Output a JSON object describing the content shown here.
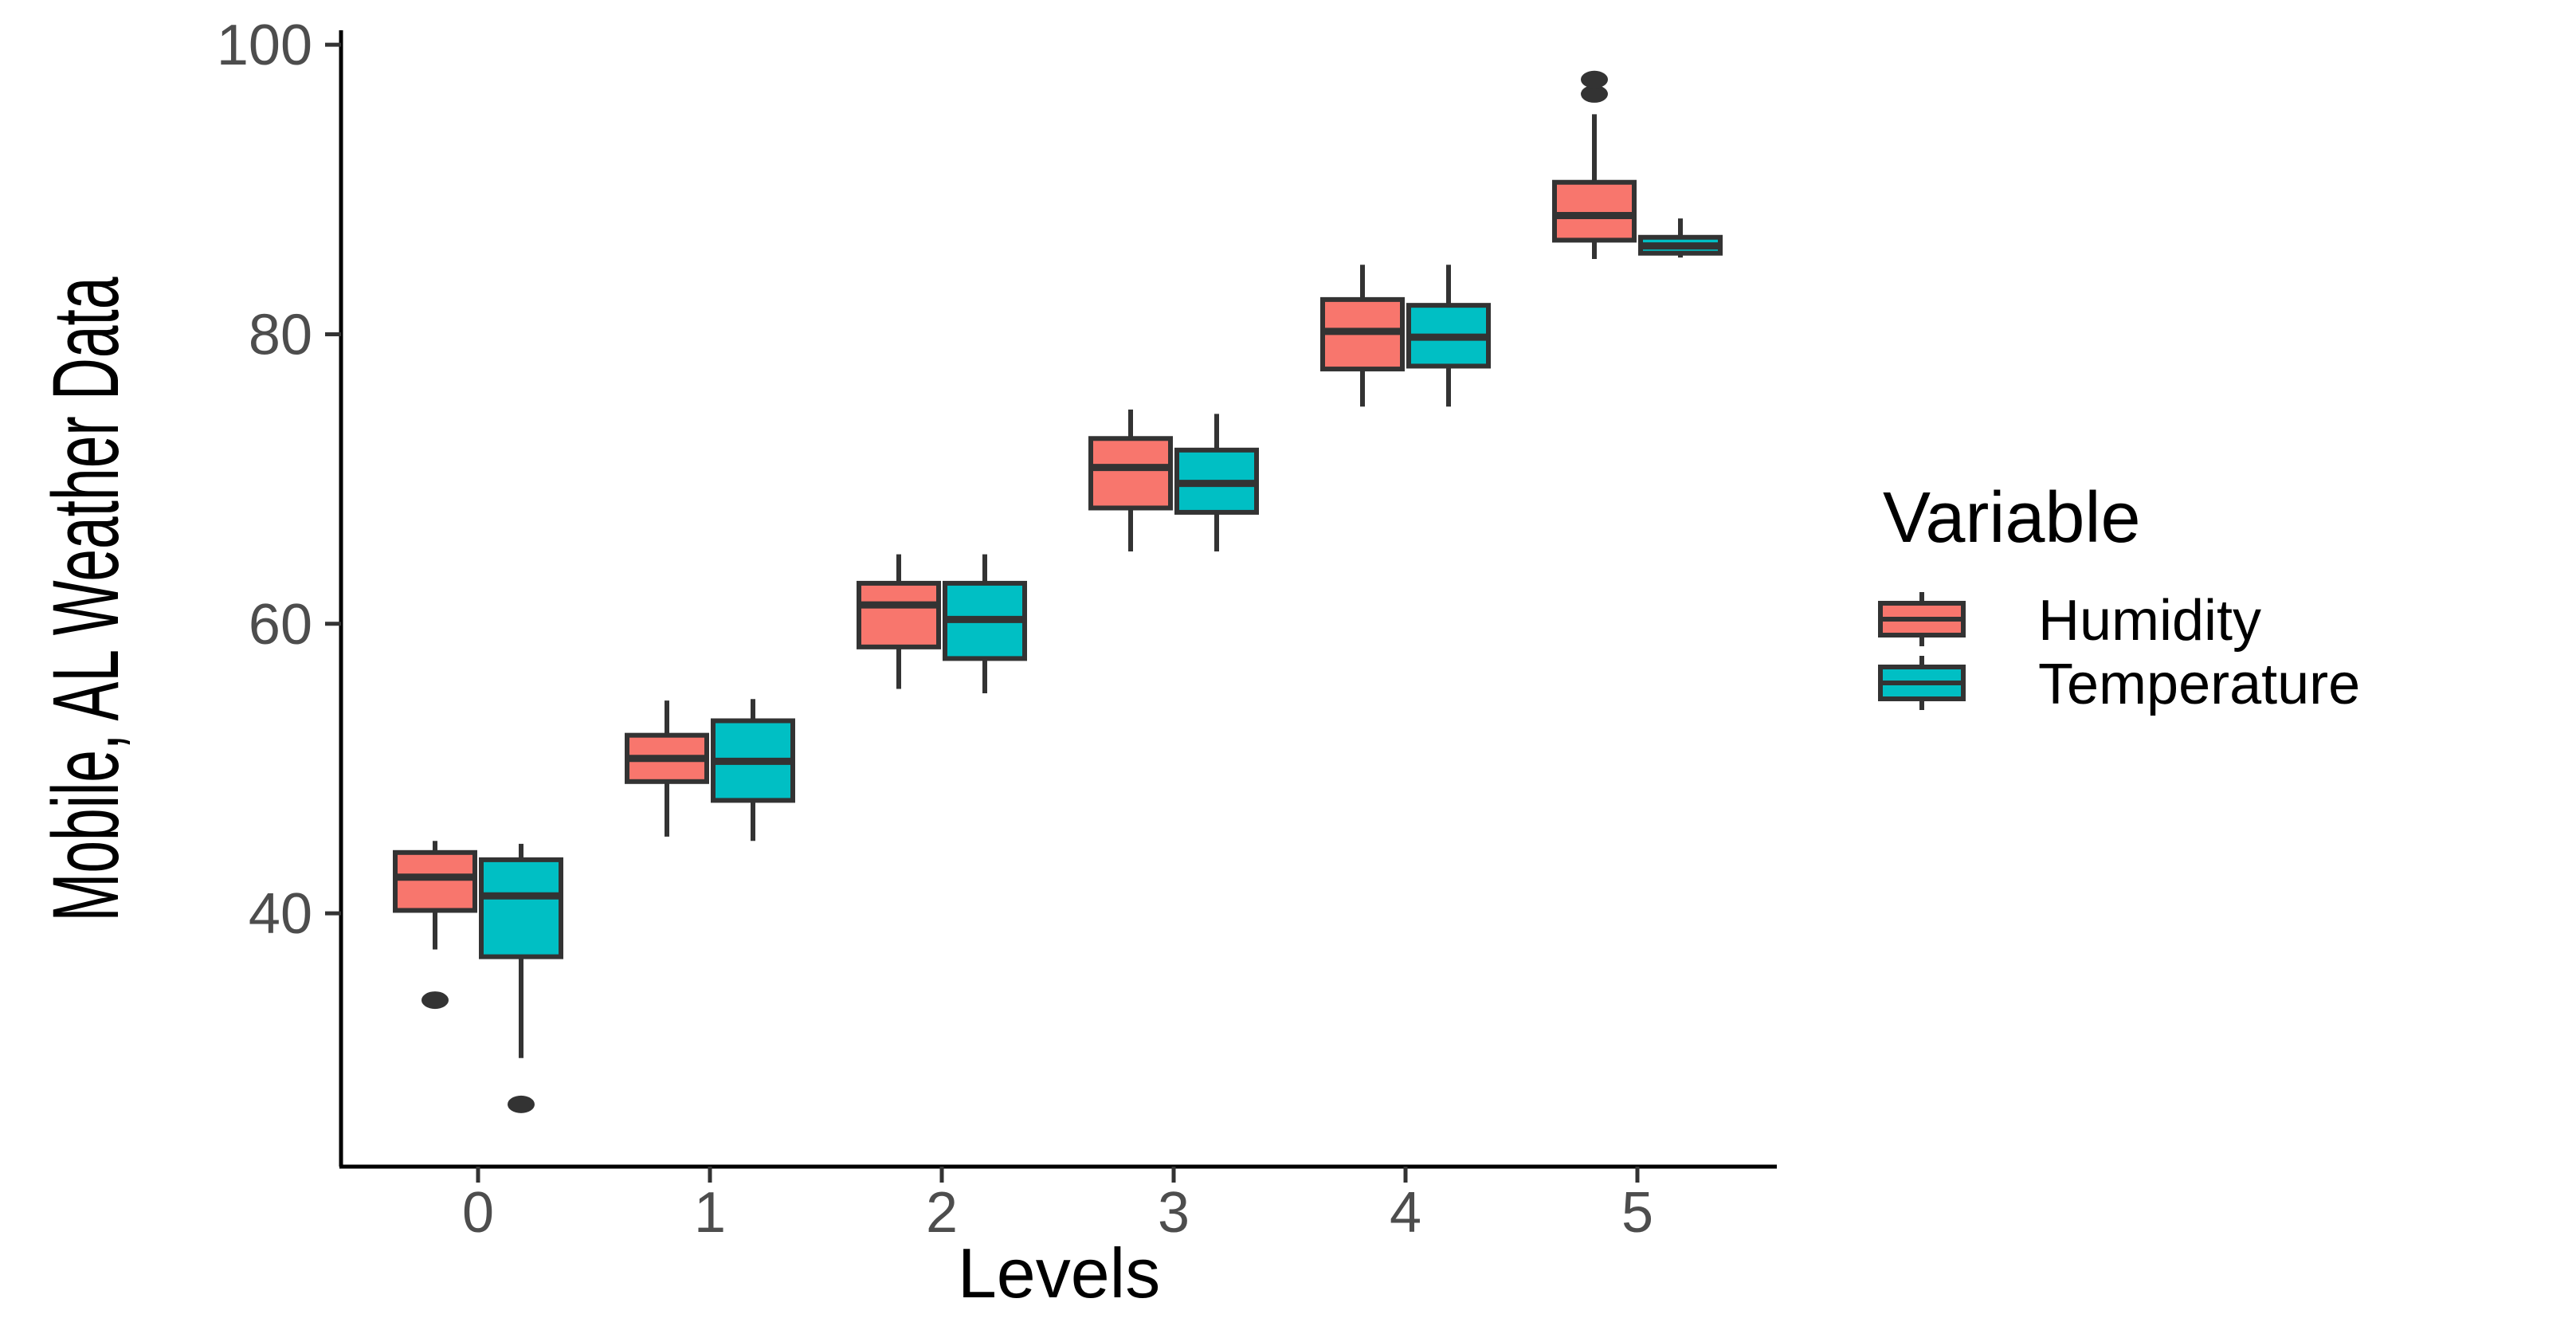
{
  "chart_data": {
    "type": "boxplot",
    "title": "",
    "xlabel": "Levels",
    "ylabel": "Mobile, AL Weather Data",
    "categories": [
      "0",
      "1",
      "2",
      "3",
      "4",
      "5"
    ],
    "ylim": [
      22.5,
      101
    ],
    "yticks": [
      40,
      60,
      80,
      100
    ],
    "grid": false,
    "legend": {
      "title": "Variable",
      "position": "right"
    },
    "series": [
      {
        "name": "Humidity",
        "color": "#F8766D",
        "boxes": [
          {
            "min": 37.5,
            "q1": 40.2,
            "median": 42.5,
            "q3": 44.2,
            "max": 45.0,
            "outliers": [
              34.0
            ]
          },
          {
            "min": 45.3,
            "q1": 49.1,
            "median": 50.7,
            "q3": 52.3,
            "max": 54.7,
            "outliers": []
          },
          {
            "min": 55.5,
            "q1": 58.4,
            "median": 61.3,
            "q3": 62.8,
            "max": 64.8,
            "outliers": []
          },
          {
            "min": 65.0,
            "q1": 68.0,
            "median": 70.8,
            "q3": 72.8,
            "max": 74.8,
            "outliers": []
          },
          {
            "min": 75.0,
            "q1": 77.6,
            "median": 80.2,
            "q3": 82.4,
            "max": 84.8,
            "outliers": []
          },
          {
            "min": 85.2,
            "q1": 86.5,
            "median": 88.2,
            "q3": 90.5,
            "max": 95.2,
            "outliers": [
              96.6,
              97.6
            ]
          }
        ]
      },
      {
        "name": "Temperature",
        "color": "#00BFC4",
        "boxes": [
          {
            "min": 30.0,
            "q1": 37.0,
            "median": 41.2,
            "q3": 43.7,
            "max": 44.8,
            "outliers": [
              26.8
            ]
          },
          {
            "min": 45.0,
            "q1": 47.8,
            "median": 50.5,
            "q3": 53.3,
            "max": 54.8,
            "outliers": []
          },
          {
            "min": 55.2,
            "q1": 57.6,
            "median": 60.3,
            "q3": 62.8,
            "max": 64.8,
            "outliers": []
          },
          {
            "min": 65.0,
            "q1": 67.7,
            "median": 69.7,
            "q3": 72.0,
            "max": 74.5,
            "outliers": []
          },
          {
            "min": 75.0,
            "q1": 77.8,
            "median": 79.8,
            "q3": 82.0,
            "max": 84.8,
            "outliers": []
          },
          {
            "min": 85.3,
            "q1": 85.6,
            "median": 86.1,
            "q3": 86.7,
            "max": 88.0,
            "outliers": []
          }
        ]
      }
    ]
  }
}
